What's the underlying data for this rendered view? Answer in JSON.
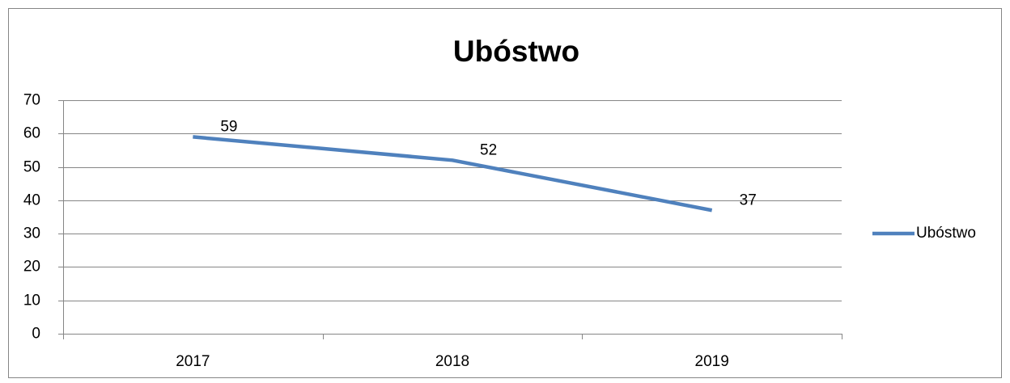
{
  "chart_data": {
    "type": "line",
    "title": "Ubóstwo",
    "categories": [
      "2017",
      "2018",
      "2019"
    ],
    "series": [
      {
        "name": "Ubóstwo",
        "color": "#4f81bd",
        "values": [
          59,
          52,
          37
        ]
      }
    ],
    "ylim": [
      0,
      70
    ],
    "yticks": [
      0,
      10,
      20,
      30,
      40,
      50,
      60,
      70
    ],
    "grid": true,
    "legend": "right",
    "data_labels": true
  }
}
